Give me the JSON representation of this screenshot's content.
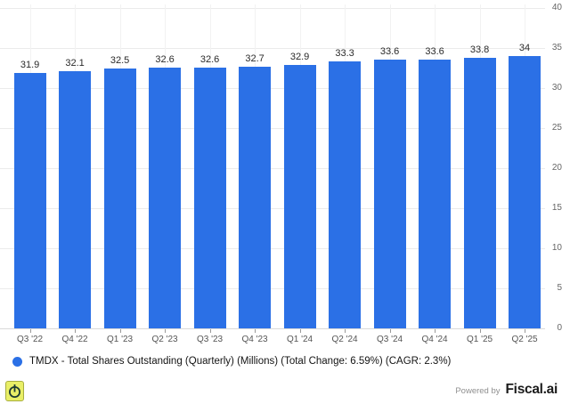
{
  "chart_data": {
    "type": "bar",
    "title": "",
    "xlabel": "",
    "ylabel": "",
    "categories": [
      "Q3 '22",
      "Q4 '22",
      "Q1 '23",
      "Q2 '23",
      "Q3 '23",
      "Q4 '23",
      "Q1 '24",
      "Q2 '24",
      "Q3 '24",
      "Q4 '24",
      "Q1 '25",
      "Q2 '25"
    ],
    "values": [
      31.9,
      32.1,
      32.5,
      32.6,
      32.6,
      32.7,
      32.9,
      33.3,
      33.6,
      33.6,
      33.8,
      34
    ],
    "ylim": [
      0,
      40
    ],
    "yticks": [
      0,
      5,
      10,
      15,
      20,
      25,
      30,
      35,
      40
    ],
    "grid": true,
    "y_axis_side": "right",
    "data_labels": true,
    "legend_position": "bottom-left",
    "series": [
      {
        "name": "TMDX - Total Shares Outstanding (Quarterly) (Millions) (Total Change: 6.59%) (CAGR: 2.3%)",
        "values": [
          31.9,
          32.1,
          32.5,
          32.6,
          32.6,
          32.7,
          32.9,
          33.3,
          33.6,
          33.6,
          33.8,
          34
        ]
      }
    ]
  },
  "legend": {
    "label": "TMDX - Total Shares Outstanding (Quarterly) (Millions) (Total Change: 6.59%) (CAGR: 2.3%)",
    "marker": "circle-icon",
    "marker_color": "#2b70e6"
  },
  "footer": {
    "powered_by": "Powered by",
    "brand": "Fiscal.ai"
  },
  "icons": {
    "corner": "power-icon"
  },
  "colors": {
    "bar": "#2b70e6",
    "grid_h": "#ebebeb",
    "grid_v": "#f2f2f2",
    "axis": "#d9d9d9",
    "tick": "#999999",
    "x_label": "#555555",
    "y_label": "#666666",
    "data_label": "#2a2a2a",
    "background": "#ffffff",
    "icon_bg": "#e9ef67",
    "icon_glyph": "#1d3a33",
    "brand_text": "#1c1c1c",
    "powered_text": "#909090"
  }
}
